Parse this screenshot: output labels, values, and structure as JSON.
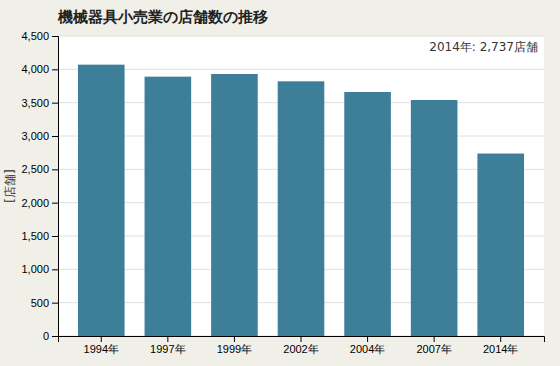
{
  "chart_data": {
    "type": "bar",
    "title": "機械器具小売業の店舗数の推移",
    "ylabel": "[店舗]",
    "annotation": "2014年: 2,737店舗",
    "categories": [
      "1994年",
      "1997年",
      "1999年",
      "2002年",
      "2004年",
      "2007年",
      "2014年"
    ],
    "values": [
      4070,
      3890,
      3930,
      3820,
      3660,
      3540,
      2737
    ],
    "color": "#3d7f99",
    "ylim": [
      0,
      4500
    ],
    "yticks": [
      0,
      500,
      {
        "value": 1000,
        "label": "1,000"
      },
      {
        "value": 1500,
        "label": "1,500"
      },
      {
        "value": 2000,
        "label": "2,000"
      },
      {
        "value": 2500,
        "label": "2,500"
      },
      {
        "value": 3000,
        "label": "3,000"
      },
      {
        "value": 3500,
        "label": "3,500"
      },
      {
        "value": 4000,
        "label": "4,000"
      },
      {
        "value": 4500,
        "label": "4,500"
      }
    ],
    "grid": true
  }
}
